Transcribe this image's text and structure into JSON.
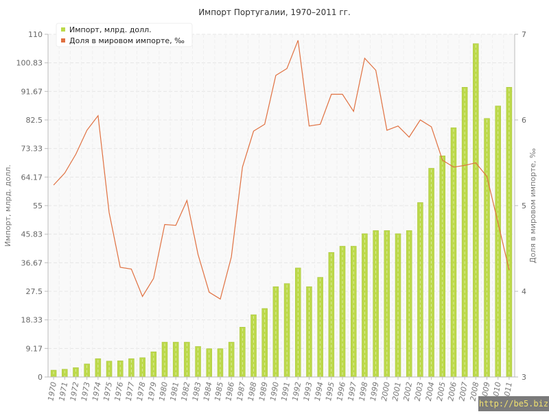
{
  "chart_data": {
    "type": "bar+line",
    "title": "Импорт Португалии, 1970–2011 гг.",
    "ylabel_left": "Импорт, млрд. долл.",
    "ylabel_right": "Доля в мировом импорте, ‰",
    "categories": [
      "1970",
      "1971",
      "1972",
      "1973",
      "1974",
      "1975",
      "1976",
      "1977",
      "1978",
      "1979",
      "1980",
      "1981",
      "1982",
      "1983",
      "1984",
      "1985",
      "1986",
      "1987",
      "1988",
      "1989",
      "1990",
      "1991",
      "1992",
      "1993",
      "1994",
      "1995",
      "1996",
      "1997",
      "1998",
      "1999",
      "2000",
      "2001",
      "2002",
      "2003",
      "2004",
      "2005",
      "2006",
      "2007",
      "2008",
      "2009",
      "2010",
      "2011"
    ],
    "y_left_ticks": [
      "0",
      "9.17",
      "18.33",
      "27.5",
      "36.67",
      "45.83",
      "55",
      "64.17",
      "73.33",
      "82.5",
      "91.67",
      "100.83",
      "110"
    ],
    "y_left_range": [
      0,
      110
    ],
    "y_right_ticks": [
      "3",
      "4",
      "5",
      "6",
      "7"
    ],
    "y_right_range": [
      3,
      7
    ],
    "grid": true,
    "legend_position": "top-left",
    "series": [
      {
        "name": "Импорт, млрд. долл.",
        "type": "bar",
        "axis": "left",
        "color": "#bcd94a",
        "values": [
          2.2,
          2.5,
          3.0,
          4.2,
          5.9,
          5.1,
          5.2,
          5.9,
          6.2,
          8.1,
          11.2,
          11.2,
          11.2,
          9.8,
          9.1,
          9.1,
          11.2,
          16.0,
          20.0,
          22.0,
          29.0,
          30.0,
          35.0,
          29.0,
          32.0,
          40.0,
          42.0,
          42.0,
          46.0,
          47.0,
          47.0,
          46.0,
          47.0,
          56.0,
          67.0,
          71.0,
          80.0,
          93.0,
          107.0,
          83.0,
          87.0,
          93.0
        ]
      },
      {
        "name": "Доля в мировом импорте, ‰",
        "type": "line",
        "axis": "right",
        "color": "#e07040",
        "values": [
          5.24,
          5.38,
          5.6,
          5.88,
          6.05,
          4.92,
          4.28,
          4.26,
          3.94,
          4.15,
          4.78,
          4.77,
          5.06,
          4.43,
          3.99,
          3.91,
          4.4,
          5.45,
          5.87,
          5.95,
          6.52,
          6.6,
          6.93,
          5.93,
          5.95,
          6.3,
          6.3,
          6.1,
          6.72,
          6.58,
          5.88,
          5.93,
          5.8,
          6.0,
          5.92,
          5.53,
          5.45,
          5.47,
          5.5,
          5.34,
          4.8,
          4.25
        ]
      }
    ]
  },
  "watermark": {
    "text": "http://be5.biz"
  }
}
